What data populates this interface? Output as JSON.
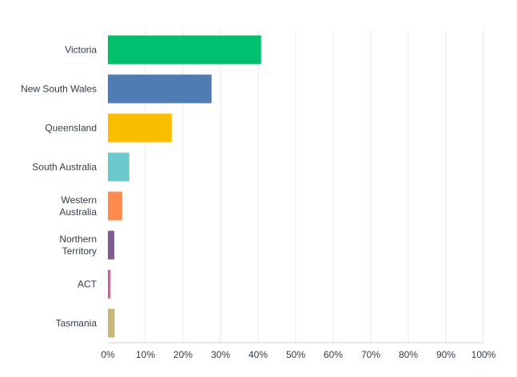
{
  "chart_data": {
    "type": "bar",
    "orientation": "horizontal",
    "categories": [
      [
        "Victoria"
      ],
      [
        "New South Wales"
      ],
      [
        "Queensland"
      ],
      [
        "South Australia"
      ],
      [
        "Western",
        "Australia"
      ],
      [
        "Northern",
        "Territory"
      ],
      [
        "ACT"
      ],
      [
        "Tasmania"
      ]
    ],
    "values": [
      40.8,
      27.6,
      17.0,
      5.7,
      3.8,
      1.7,
      0.7,
      1.8
    ],
    "colors": [
      "#00bf6f",
      "#507cb6",
      "#f9be00",
      "#6bc8cd",
      "#ff8b4f",
      "#7d5f8f",
      "#d25f90",
      "#c7b879"
    ],
    "xlim": [
      0,
      100
    ],
    "xticks": [
      "0%",
      "10%",
      "20%",
      "30%",
      "40%",
      "50%",
      "60%",
      "70%",
      "80%",
      "90%",
      "100%"
    ],
    "grid": true,
    "title": "",
    "xlabel": "",
    "ylabel": ""
  }
}
